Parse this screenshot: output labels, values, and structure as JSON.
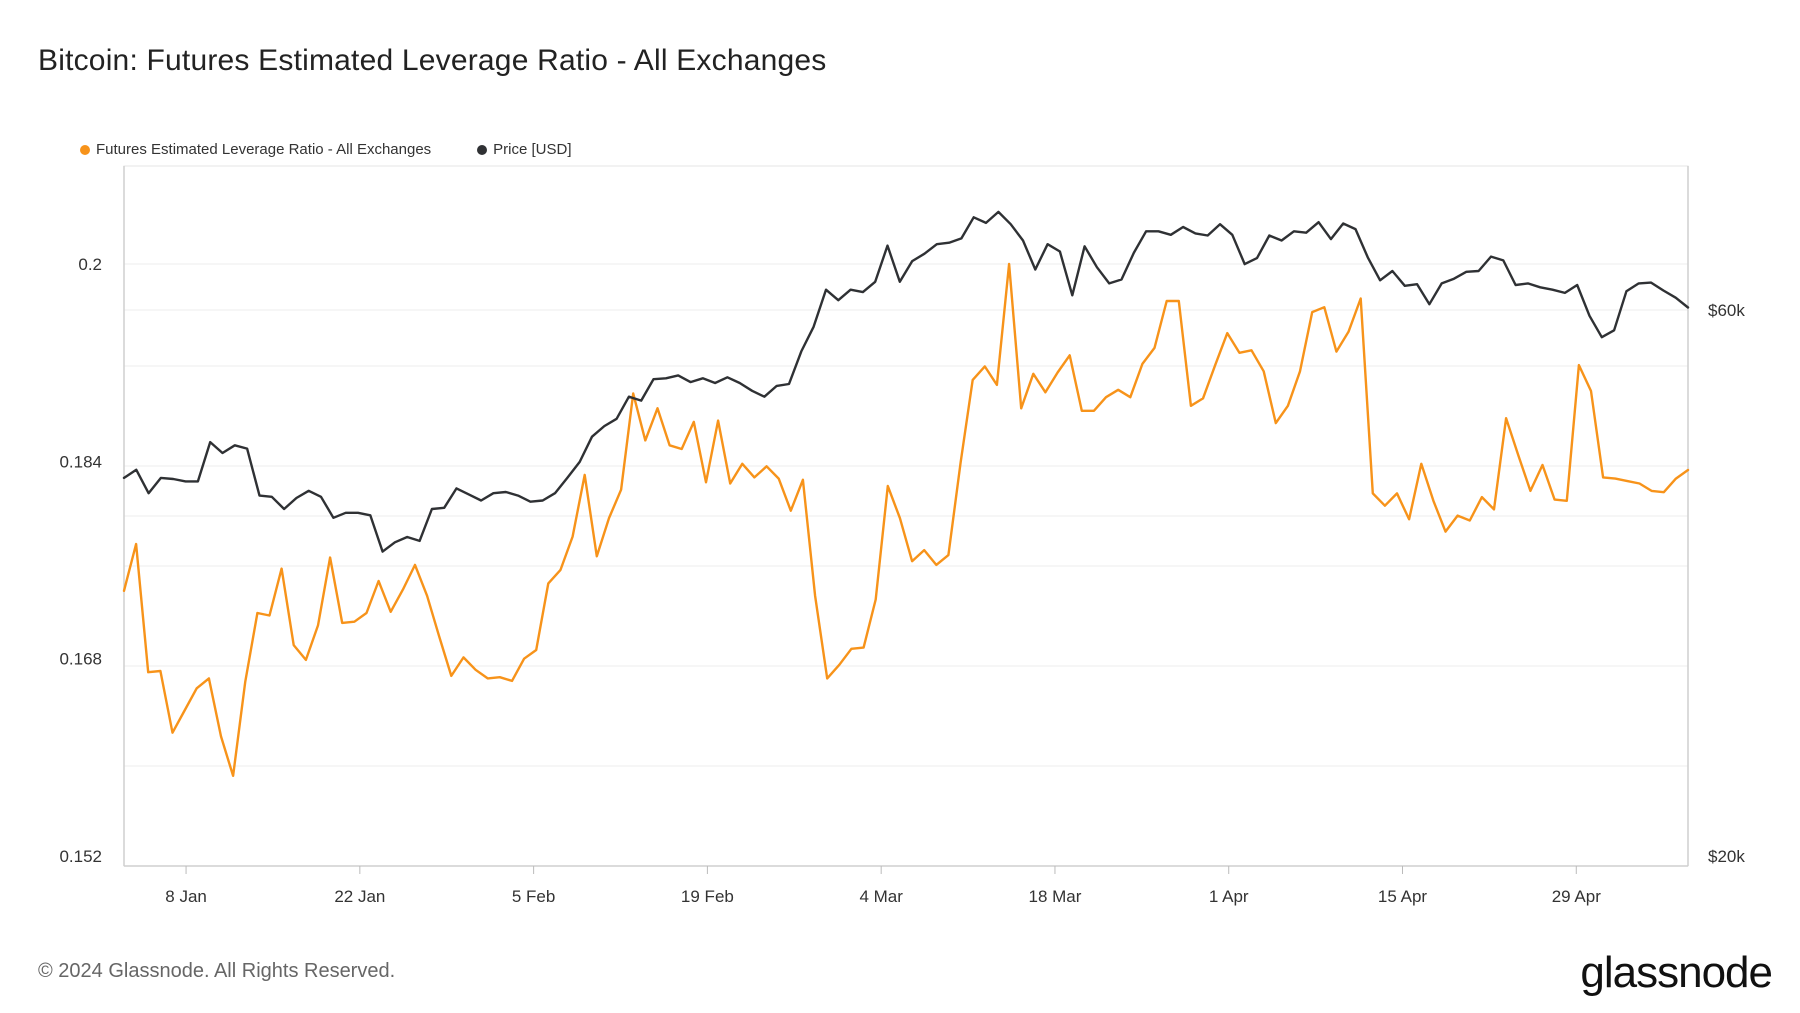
{
  "title": "Bitcoin: Futures Estimated Leverage Ratio - All Exchanges",
  "footer": "© 2024 Glassnode. All Rights Reserved.",
  "logo": "glassnode",
  "chart_data": {
    "type": "line",
    "title": "Bitcoin: Futures Estimated Leverage Ratio - All Exchanges",
    "legend_position": "top-left",
    "grid": true,
    "x_range": [
      "2024-01-03",
      "2024-05-08"
    ],
    "x_ticks": [
      {
        "date": "2024-01-08",
        "label": "8 Jan"
      },
      {
        "date": "2024-01-22",
        "label": "22 Jan"
      },
      {
        "date": "2024-02-05",
        "label": "5 Feb"
      },
      {
        "date": "2024-02-19",
        "label": "19 Feb"
      },
      {
        "date": "2024-03-04",
        "label": "4 Mar"
      },
      {
        "date": "2024-03-18",
        "label": "18 Mar"
      },
      {
        "date": "2024-04-01",
        "label": "1 Apr"
      },
      {
        "date": "2024-04-15",
        "label": "15 Apr"
      },
      {
        "date": "2024-04-29",
        "label": "29 Apr"
      }
    ],
    "y_left": {
      "ticks": [
        0.152,
        0.168,
        0.184,
        0.2
      ],
      "labels": [
        "0.152",
        "0.168",
        "0.184",
        "0.2"
      ]
    },
    "y_right": {
      "scale": "log",
      "ticks": [
        20000,
        60000
      ],
      "labels": [
        "$20k",
        "$60k"
      ]
    },
    "series": [
      {
        "name": "Futures Estimated Leverage Ratio - All Exchanges",
        "axis": "left",
        "color": "#f7931a",
        "values": [
          0.1735,
          0.1773,
          0.1669,
          0.167,
          0.162,
          0.1638,
          0.1656,
          0.1664,
          0.1617,
          0.1585,
          0.1661,
          0.1717,
          0.1715,
          0.1753,
          0.1691,
          0.1679,
          0.1707,
          0.1762,
          0.1709,
          0.171,
          0.1717,
          0.1743,
          0.1718,
          0.1736,
          0.1756,
          0.1731,
          0.1698,
          0.1666,
          0.1681,
          0.1671,
          0.1664,
          0.1665,
          0.1662,
          0.168,
          0.1687,
          0.1741,
          0.1752,
          0.1779,
          0.1829,
          0.1763,
          0.1794,
          0.1817,
          0.1895,
          0.1857,
          0.1883,
          0.1853,
          0.185,
          0.1872,
          0.1823,
          0.1873,
          0.1822,
          0.1838,
          0.1827,
          0.1836,
          0.1826,
          0.18,
          0.1825,
          0.1731,
          0.1664,
          0.1675,
          0.1688,
          0.1689,
          0.1728,
          0.182,
          0.1794,
          0.1759,
          0.1768,
          0.1756,
          0.1764,
          0.1839,
          0.1906,
          0.1917,
          0.1902,
          0.2,
          0.1883,
          0.1911,
          0.1896,
          0.1912,
          0.1926,
          0.1881,
          0.1881,
          0.1892,
          0.1898,
          0.1892,
          0.1919,
          0.1932,
          0.197,
          0.197,
          0.1885,
          0.1891,
          0.1918,
          0.1944,
          0.1928,
          0.193,
          0.1913,
          0.1871,
          0.1885,
          0.1913,
          0.1961,
          0.1965,
          0.1929,
          0.1945,
          0.1972,
          0.1814,
          0.1804,
          0.1814,
          0.1793,
          0.1838,
          0.1808,
          0.1783,
          0.1796,
          0.1792,
          0.1811,
          0.1801,
          0.1875,
          0.1845,
          0.1816,
          0.1837,
          0.1809,
          0.1808,
          0.1918,
          0.1897,
          0.1827,
          0.1826,
          0.1824,
          0.1822,
          0.1816,
          0.1815,
          0.1826,
          0.1833
        ]
      },
      {
        "name": "Price [USD]",
        "axis": "right",
        "color": "#2f3134",
        "values": [
          42800,
          43500,
          41500,
          42800,
          42700,
          42500,
          42500,
          46000,
          45000,
          45700,
          45400,
          41300,
          41200,
          40200,
          41100,
          41700,
          41200,
          39500,
          39900,
          39900,
          39700,
          36900,
          37600,
          38000,
          37700,
          40200,
          40300,
          41900,
          41400,
          40900,
          41500,
          41600,
          41300,
          40800,
          40900,
          41500,
          42800,
          44200,
          46500,
          47500,
          48200,
          50400,
          50000,
          52200,
          52300,
          52600,
          51900,
          52300,
          51800,
          52400,
          51800,
          51000,
          50400,
          51500,
          51700,
          55200,
          58000,
          62500,
          61200,
          62500,
          62200,
          63500,
          68300,
          63500,
          66200,
          67200,
          68500,
          68700,
          69300,
          72300,
          71500,
          73100,
          71300,
          69000,
          65100,
          68500,
          67500,
          61800,
          68200,
          65400,
          63300,
          63800,
          67300,
          70300,
          70300,
          69800,
          70900,
          70000,
          69700,
          71300,
          69800,
          65800,
          66600,
          69700,
          69000,
          70300,
          70100,
          71600,
          69200,
          71400,
          70600,
          66700,
          63700,
          64900,
          63000,
          63200,
          60700,
          63300,
          63900,
          64800,
          64900,
          66800,
          66300,
          63100,
          63300,
          62800,
          62500,
          62100,
          63100,
          59300,
          56800,
          57600,
          62300,
          63300,
          63400,
          62400,
          61500,
          60300
        ]
      }
    ]
  }
}
